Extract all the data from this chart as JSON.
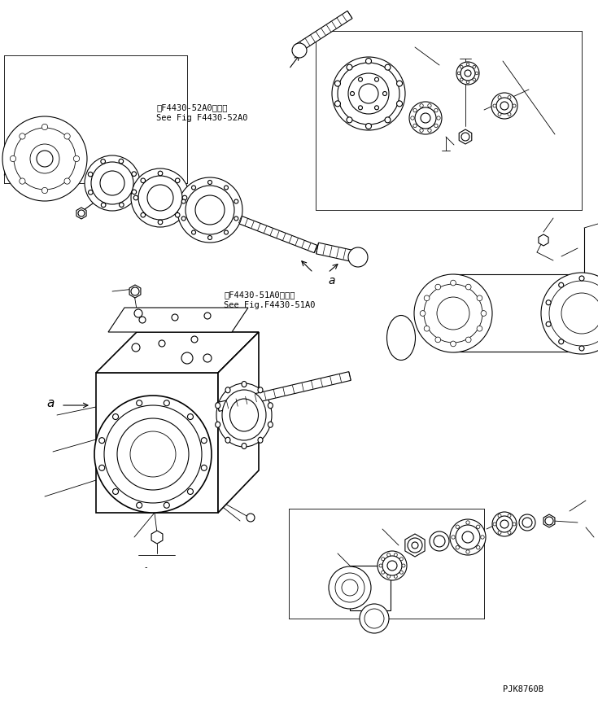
{
  "background_color": "#ffffff",
  "line_color": "#000000",
  "fig_width": 7.35,
  "fig_height": 8.65,
  "dpi": 100,
  "watermark": "PJK8760B",
  "label1_line1": "第F4430-52A0図参照",
  "label1_line2": "See Fig F4430-52A0",
  "label2_line1": "第F4430-51A0図参照",
  "label2_line2": "See Fig.F4430-51A0",
  "label_a": "a"
}
